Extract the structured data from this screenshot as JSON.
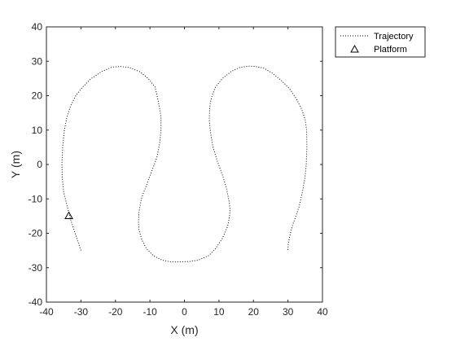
{
  "chart_data": {
    "type": "line",
    "xlabel": "X (m)",
    "ylabel": "Y (m)",
    "xlim": [
      -40,
      40
    ],
    "ylim": [
      -40,
      40
    ],
    "xticks": [
      -40,
      -30,
      -20,
      -10,
      0,
      10,
      20,
      30,
      40
    ],
    "yticks": [
      -40,
      -30,
      -20,
      -10,
      0,
      10,
      20,
      30,
      40
    ],
    "grid": false,
    "legend_position": "outside-top-right",
    "series": [
      {
        "name": "Trajectory",
        "style": "dotted",
        "color": "#000000",
        "x": [
          -30,
          -31,
          -32,
          -33,
          -34,
          -35,
          -35.4,
          -35.5,
          -35.3,
          -34.8,
          -34,
          -33,
          -31.5,
          -29.5,
          -27,
          -24,
          -21,
          -18.5,
          -16,
          -13,
          -10.5,
          -8.5,
          -7.5,
          -6.8,
          -6.8,
          -7.2,
          -8,
          -9.5,
          -11,
          -12.5,
          -13.2,
          -13.3,
          -13.2,
          -12.3,
          -11,
          -9,
          -6.5,
          -4,
          -1,
          1.5,
          4,
          7,
          9,
          11,
          12.5,
          13.1,
          13.2,
          13,
          12.2,
          11,
          9.5,
          8.3,
          7.6,
          7.2,
          7.3,
          7.5,
          8,
          9,
          11,
          13.5,
          16,
          18.5,
          20.5,
          23,
          25.5,
          28,
          30.5,
          32.5,
          34,
          35,
          35.4,
          35.5,
          35.3,
          34.9,
          34.2,
          33.3,
          32.3,
          31.2,
          30.5,
          30.1,
          30
        ],
        "y": [
          -25,
          -22,
          -19,
          -16,
          -12,
          -8,
          -4,
          0,
          5,
          10,
          14,
          17,
          20,
          22.5,
          25,
          27,
          28.3,
          28.5,
          28.2,
          27,
          25,
          22.5,
          18,
          14,
          10,
          6,
          2,
          -2,
          -6,
          -10,
          -14,
          -17,
          -19,
          -22,
          -24.5,
          -26.5,
          -27.8,
          -28.3,
          -28.3,
          -28.2,
          -27.8,
          -26.5,
          -24.5,
          -21.5,
          -18,
          -15,
          -13,
          -11,
          -7,
          -3,
          1,
          5,
          9,
          13,
          16,
          18,
          20,
          22.5,
          25,
          27,
          28.2,
          28.6,
          28.5,
          28,
          26.5,
          24.5,
          22,
          19,
          16,
          13,
          10,
          5,
          0,
          -4,
          -8,
          -12,
          -15,
          -18,
          -21,
          -23,
          -25
        ]
      },
      {
        "name": "Platform",
        "marker": "triangle",
        "color": "#000000",
        "x": [
          -33.5
        ],
        "y": [
          -14.8
        ]
      }
    ]
  }
}
